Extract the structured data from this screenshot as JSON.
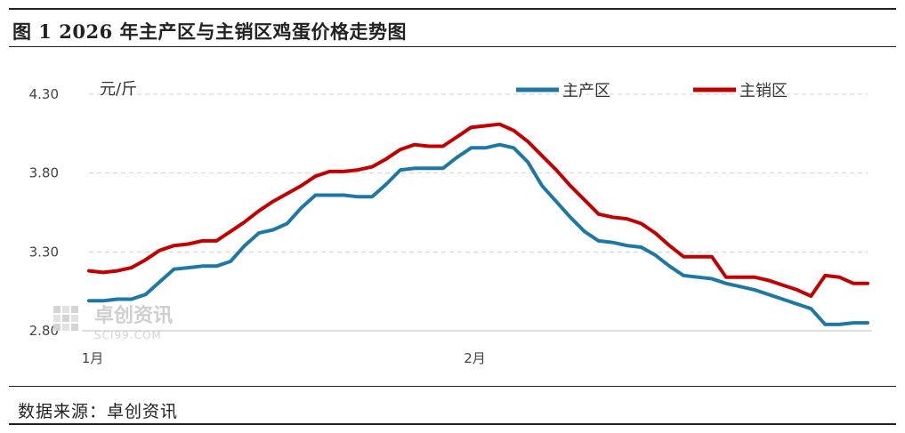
{
  "figure": {
    "title": "图 1 2026 年主产区与主销区鸡蛋价格走势图",
    "source": "数据来源：卓创资讯"
  },
  "watermark": {
    "name": "卓创资讯",
    "site": "SCI99.COM"
  },
  "chart_data": {
    "type": "line",
    "unit_label": "元/斤",
    "ylim": [
      2.8,
      4.3
    ],
    "yticks": [
      "2.80",
      "3.30",
      "3.80",
      "4.30"
    ],
    "x_tick_labels": [
      {
        "label": "1月",
        "index": 0
      },
      {
        "label": "2月",
        "index": 27
      }
    ],
    "grid": true,
    "legend": "top-right",
    "series": [
      {
        "name": "主产区",
        "color": "#1F77A4",
        "values": [
          2.99,
          2.99,
          3.0,
          3.0,
          3.03,
          3.11,
          3.19,
          3.2,
          3.21,
          3.21,
          3.24,
          3.34,
          3.42,
          3.44,
          3.48,
          3.58,
          3.66,
          3.66,
          3.66,
          3.65,
          3.65,
          3.73,
          3.82,
          3.83,
          3.83,
          3.83,
          3.9,
          3.96,
          3.96,
          3.98,
          3.96,
          3.87,
          3.72,
          3.62,
          3.52,
          3.43,
          3.37,
          3.36,
          3.34,
          3.33,
          3.28,
          3.21,
          3.15,
          3.14,
          3.13,
          3.1,
          3.08,
          3.06,
          3.03,
          3.0,
          2.97,
          2.94,
          2.84,
          2.84,
          2.85,
          2.85
        ]
      },
      {
        "name": "主销区",
        "color": "#C00000",
        "values": [
          3.18,
          3.17,
          3.18,
          3.2,
          3.25,
          3.31,
          3.34,
          3.35,
          3.37,
          3.37,
          3.43,
          3.49,
          3.56,
          3.62,
          3.67,
          3.72,
          3.78,
          3.81,
          3.81,
          3.82,
          3.84,
          3.89,
          3.95,
          3.98,
          3.97,
          3.97,
          4.03,
          4.09,
          4.1,
          4.11,
          4.07,
          4.0,
          3.91,
          3.82,
          3.72,
          3.63,
          3.54,
          3.52,
          3.51,
          3.48,
          3.42,
          3.34,
          3.27,
          3.27,
          3.27,
          3.14,
          3.14,
          3.14,
          3.12,
          3.09,
          3.06,
          3.02,
          3.15,
          3.14,
          3.1,
          3.1
        ]
      }
    ]
  }
}
